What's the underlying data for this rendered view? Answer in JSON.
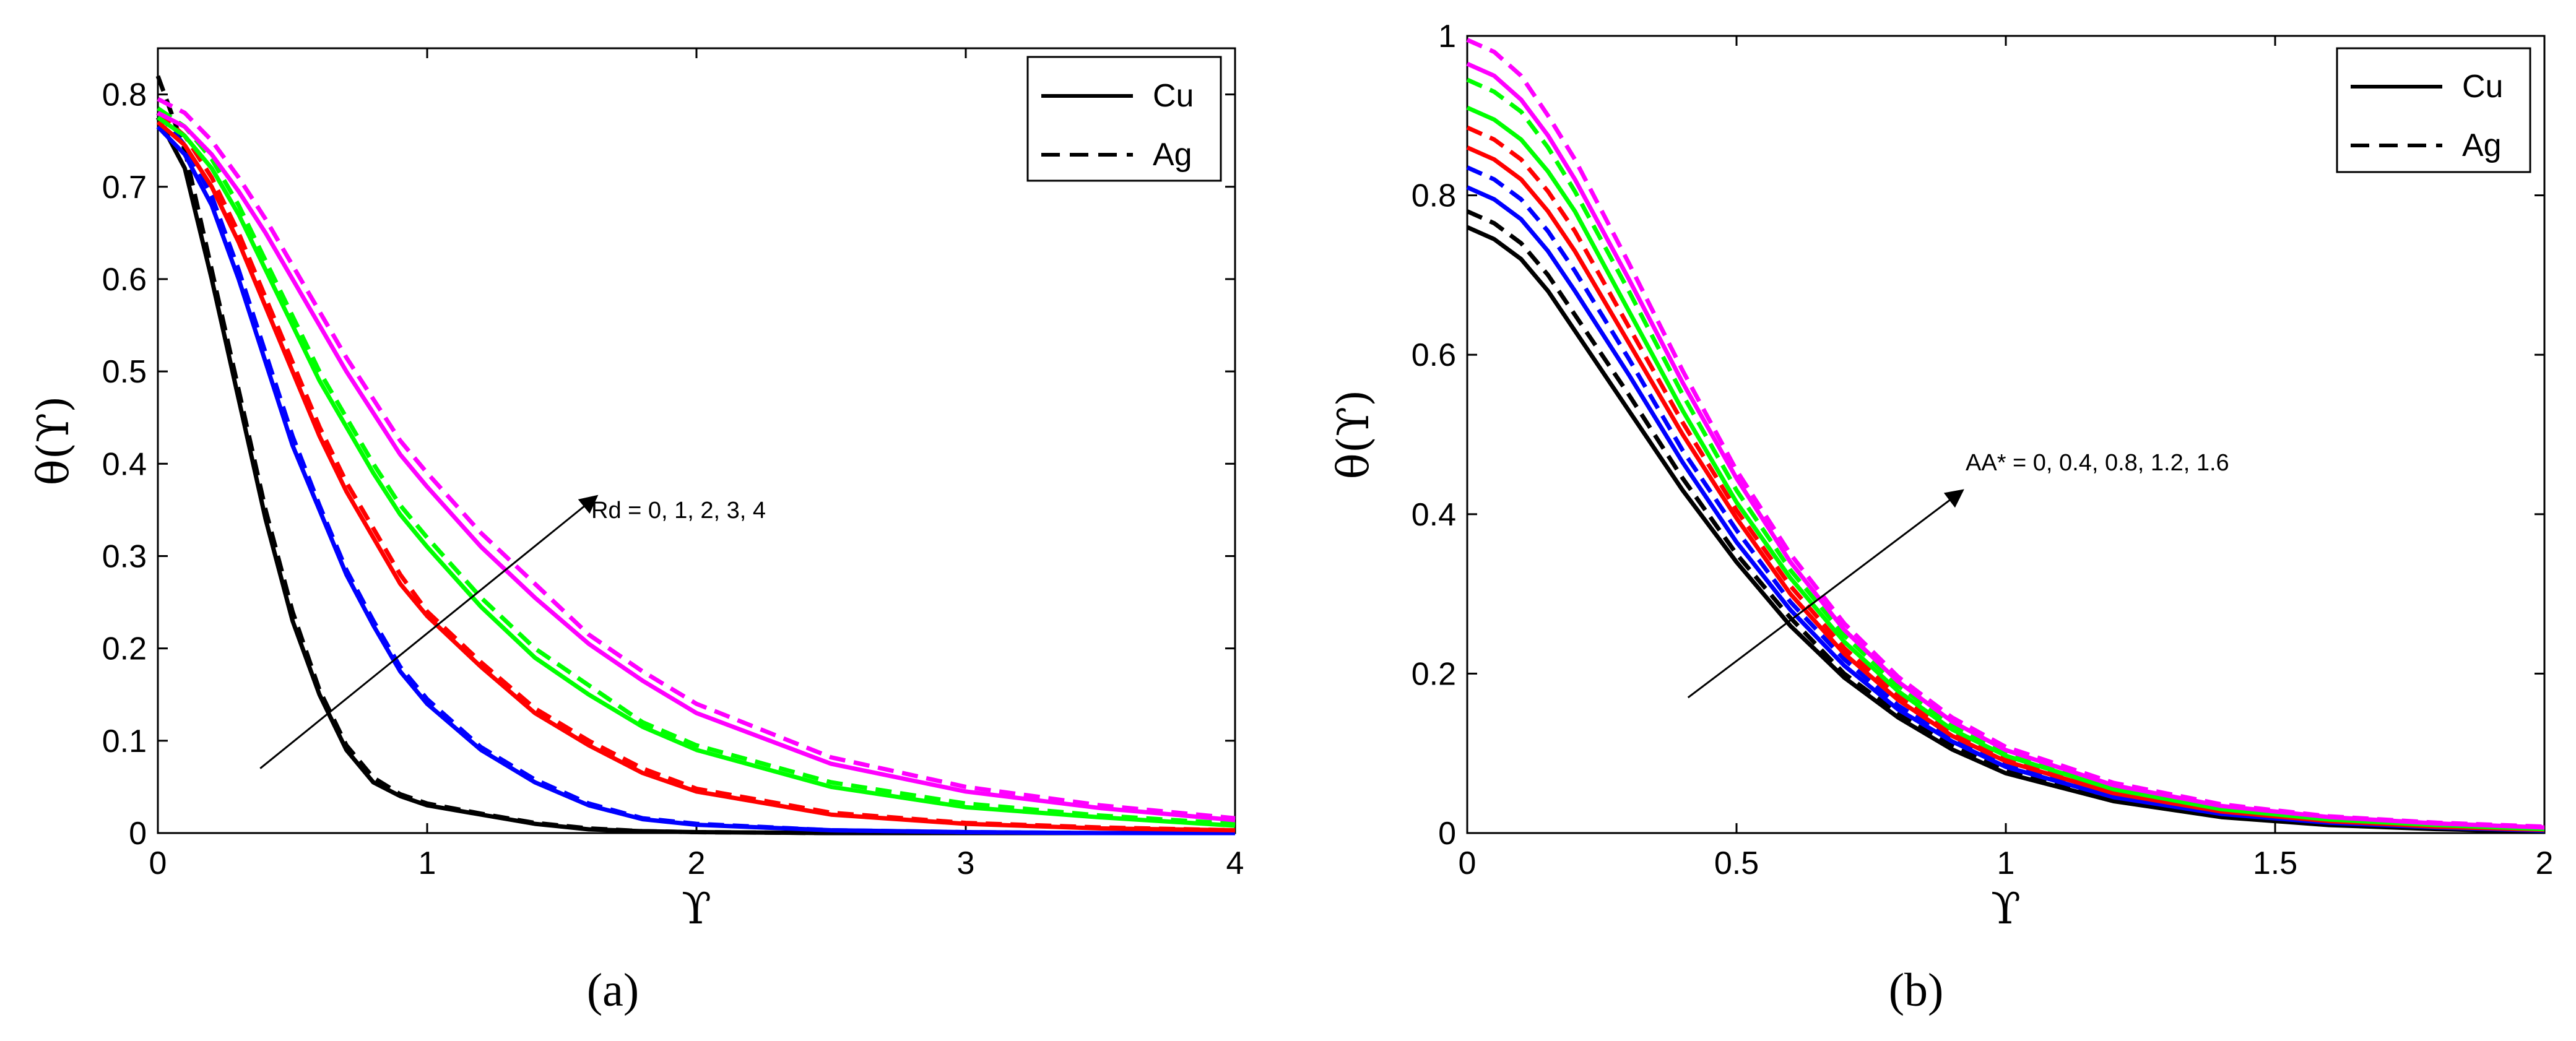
{
  "chart_data": [
    {
      "type": "line",
      "panel_label": "(a)",
      "xlabel": "ϒ",
      "ylabel": "θ(ϒ)",
      "xlim": [
        0,
        4
      ],
      "ylim": [
        0,
        0.85
      ],
      "xticks": [
        0,
        1,
        2,
        3,
        4
      ],
      "xtick_labels": [
        "0",
        "1",
        "2",
        "3",
        "4"
      ],
      "yticks": [
        0,
        0.1,
        0.2,
        0.3,
        0.4,
        0.5,
        0.6,
        0.7,
        0.8
      ],
      "ytick_labels": [
        "0",
        "0.1",
        "0.2",
        "0.3",
        "0.4",
        "0.5",
        "0.6",
        "0.7",
        "0.8"
      ],
      "legend": [
        {
          "label": "Cu",
          "style": "solid"
        },
        {
          "label": "Ag",
          "style": "dashed"
        }
      ],
      "annotation": {
        "text": "Rd = 0, 1, 2, 3, 4",
        "arrow_from": [
          0.38,
          0.07
        ],
        "arrow_to": [
          1.63,
          0.365
        ]
      },
      "x": [
        0,
        0.1,
        0.2,
        0.3,
        0.4,
        0.5,
        0.6,
        0.7,
        0.8,
        0.9,
        1.0,
        1.2,
        1.4,
        1.6,
        1.8,
        2.0,
        2.5,
        3.0,
        3.5,
        4.0
      ],
      "series": [
        {
          "name": "Cu, Rd = 0",
          "color": "#000000",
          "style": "solid",
          "values": [
            0.775,
            0.72,
            0.6,
            0.47,
            0.34,
            0.23,
            0.15,
            0.09,
            0.055,
            0.04,
            0.03,
            0.02,
            0.01,
            0.004,
            0.002,
            0.001,
            0.0,
            0.0,
            0.0,
            0.0
          ]
        },
        {
          "name": "Ag, Rd = 0",
          "color": "#000000",
          "style": "dashed",
          "values": [
            0.82,
            0.74,
            0.61,
            0.48,
            0.35,
            0.24,
            0.155,
            0.095,
            0.06,
            0.042,
            0.032,
            0.021,
            0.011,
            0.005,
            0.002,
            0.001,
            0.0,
            0.0,
            0.0,
            0.0
          ]
        },
        {
          "name": "Cu, Rd = 1",
          "color": "#0000ff",
          "style": "solid",
          "values": [
            0.765,
            0.735,
            0.68,
            0.6,
            0.51,
            0.42,
            0.35,
            0.28,
            0.225,
            0.175,
            0.14,
            0.09,
            0.055,
            0.03,
            0.015,
            0.009,
            0.003,
            0.001,
            0.0,
            0.0
          ]
        },
        {
          "name": "Ag, Rd = 1",
          "color": "#0000ff",
          "style": "dashed",
          "values": [
            0.78,
            0.745,
            0.69,
            0.61,
            0.52,
            0.43,
            0.355,
            0.285,
            0.23,
            0.18,
            0.145,
            0.093,
            0.058,
            0.032,
            0.016,
            0.01,
            0.003,
            0.001,
            0.0,
            0.0
          ]
        },
        {
          "name": "Cu, Rd = 2",
          "color": "#ff0000",
          "style": "solid",
          "values": [
            0.77,
            0.745,
            0.7,
            0.64,
            0.57,
            0.5,
            0.43,
            0.37,
            0.32,
            0.27,
            0.235,
            0.18,
            0.13,
            0.095,
            0.065,
            0.045,
            0.02,
            0.01,
            0.005,
            0.003
          ]
        },
        {
          "name": "Ag, Rd = 2",
          "color": "#ff0000",
          "style": "dashed",
          "values": [
            0.78,
            0.755,
            0.71,
            0.65,
            0.58,
            0.51,
            0.44,
            0.38,
            0.33,
            0.28,
            0.24,
            0.185,
            0.135,
            0.1,
            0.07,
            0.048,
            0.022,
            0.011,
            0.006,
            0.003
          ]
        },
        {
          "name": "Cu, Rd = 3",
          "color": "#00ff00",
          "style": "solid",
          "values": [
            0.775,
            0.755,
            0.72,
            0.67,
            0.61,
            0.55,
            0.49,
            0.44,
            0.39,
            0.345,
            0.31,
            0.245,
            0.19,
            0.15,
            0.115,
            0.09,
            0.05,
            0.028,
            0.017,
            0.008
          ]
        },
        {
          "name": "Ag, Rd = 3",
          "color": "#00ff00",
          "style": "dashed",
          "values": [
            0.785,
            0.765,
            0.73,
            0.68,
            0.62,
            0.56,
            0.5,
            0.45,
            0.4,
            0.355,
            0.32,
            0.255,
            0.2,
            0.16,
            0.12,
            0.095,
            0.055,
            0.032,
            0.019,
            0.01
          ]
        },
        {
          "name": "Cu, Rd = 4",
          "color": "#ff00ff",
          "style": "solid",
          "values": [
            0.78,
            0.765,
            0.735,
            0.695,
            0.65,
            0.6,
            0.55,
            0.5,
            0.455,
            0.41,
            0.375,
            0.31,
            0.255,
            0.205,
            0.165,
            0.13,
            0.075,
            0.045,
            0.027,
            0.014
          ]
        },
        {
          "name": "Ag, Rd = 4",
          "color": "#ff00ff",
          "style": "dashed",
          "values": [
            0.795,
            0.78,
            0.75,
            0.71,
            0.665,
            0.615,
            0.565,
            0.515,
            0.47,
            0.425,
            0.39,
            0.325,
            0.27,
            0.215,
            0.175,
            0.14,
            0.082,
            0.05,
            0.03,
            0.016
          ]
        }
      ]
    },
    {
      "type": "line",
      "panel_label": "(b)",
      "xlabel": "ϒ",
      "ylabel": "θ(ϒ)",
      "xlim": [
        0,
        2
      ],
      "ylim": [
        0,
        1
      ],
      "xticks": [
        0,
        0.5,
        1,
        1.5,
        2
      ],
      "xtick_labels": [
        "0",
        "0.5",
        "1",
        "1.5",
        "2"
      ],
      "yticks": [
        0,
        0.2,
        0.4,
        0.6,
        0.8,
        1
      ],
      "ytick_labels": [
        "0",
        "0.2",
        "0.4",
        "0.6",
        "0.8",
        "1"
      ],
      "legend": [
        {
          "label": "Cu",
          "style": "solid"
        },
        {
          "label": "Ag",
          "style": "dashed"
        }
      ],
      "annotation": {
        "text": "AA* = 0, 0.4, 0.8, 1.2, 1.6",
        "arrow_from": [
          0.41,
          0.17
        ],
        "arrow_to": [
          0.92,
          0.43
        ]
      },
      "x": [
        0,
        0.05,
        0.1,
        0.15,
        0.2,
        0.3,
        0.4,
        0.5,
        0.6,
        0.7,
        0.8,
        0.9,
        1.0,
        1.2,
        1.4,
        1.6,
        1.8,
        2.0
      ],
      "series": [
        {
          "name": "Cu, AA* = 0",
          "color": "#000000",
          "style": "solid",
          "values": [
            0.76,
            0.745,
            0.72,
            0.68,
            0.63,
            0.53,
            0.43,
            0.34,
            0.26,
            0.195,
            0.145,
            0.105,
            0.075,
            0.04,
            0.02,
            0.01,
            0.005,
            0.002
          ]
        },
        {
          "name": "Ag, AA* = 0",
          "color": "#000000",
          "style": "dashed",
          "values": [
            0.78,
            0.765,
            0.74,
            0.7,
            0.65,
            0.55,
            0.445,
            0.35,
            0.27,
            0.2,
            0.15,
            0.11,
            0.08,
            0.043,
            0.022,
            0.012,
            0.006,
            0.003
          ]
        },
        {
          "name": "Cu, AA* = 0.4",
          "color": "#0000ff",
          "style": "solid",
          "values": [
            0.81,
            0.795,
            0.77,
            0.73,
            0.68,
            0.575,
            0.465,
            0.365,
            0.28,
            0.21,
            0.155,
            0.115,
            0.083,
            0.045,
            0.024,
            0.013,
            0.007,
            0.003
          ]
        },
        {
          "name": "Ag, AA* = 0.4",
          "color": "#0000ff",
          "style": "dashed",
          "values": [
            0.835,
            0.82,
            0.795,
            0.755,
            0.705,
            0.595,
            0.48,
            0.38,
            0.29,
            0.218,
            0.16,
            0.118,
            0.087,
            0.047,
            0.025,
            0.014,
            0.008,
            0.004
          ]
        },
        {
          "name": "Cu, AA* = 0.8",
          "color": "#ff0000",
          "style": "solid",
          "values": [
            0.86,
            0.845,
            0.82,
            0.78,
            0.73,
            0.615,
            0.5,
            0.395,
            0.3,
            0.225,
            0.167,
            0.122,
            0.09,
            0.05,
            0.027,
            0.015,
            0.008,
            0.004
          ]
        },
        {
          "name": "Ag, AA* = 0.8",
          "color": "#ff0000",
          "style": "dashed",
          "values": [
            0.885,
            0.87,
            0.845,
            0.805,
            0.755,
            0.635,
            0.515,
            0.405,
            0.31,
            0.232,
            0.172,
            0.127,
            0.093,
            0.052,
            0.028,
            0.016,
            0.009,
            0.005
          ]
        },
        {
          "name": "Cu, AA* = 1.2",
          "color": "#00ff00",
          "style": "solid",
          "values": [
            0.91,
            0.895,
            0.87,
            0.83,
            0.78,
            0.655,
            0.53,
            0.415,
            0.32,
            0.24,
            0.178,
            0.13,
            0.097,
            0.055,
            0.03,
            0.017,
            0.01,
            0.005
          ]
        },
        {
          "name": "Ag, AA* = 1.2",
          "color": "#00ff00",
          "style": "dashed",
          "values": [
            0.945,
            0.93,
            0.905,
            0.86,
            0.805,
            0.68,
            0.55,
            0.43,
            0.33,
            0.248,
            0.185,
            0.136,
            0.1,
            0.057,
            0.032,
            0.018,
            0.011,
            0.006
          ]
        },
        {
          "name": "Cu, AA* = 1.6",
          "color": "#ff00ff",
          "style": "solid",
          "values": [
            0.965,
            0.95,
            0.92,
            0.875,
            0.82,
            0.695,
            0.565,
            0.445,
            0.34,
            0.255,
            0.19,
            0.14,
            0.104,
            0.06,
            0.034,
            0.02,
            0.012,
            0.007
          ]
        },
        {
          "name": "Ag, AA* = 1.6",
          "color": "#ff00ff",
          "style": "dashed",
          "values": [
            0.995,
            0.98,
            0.95,
            0.9,
            0.845,
            0.715,
            0.58,
            0.455,
            0.35,
            0.263,
            0.196,
            0.145,
            0.108,
            0.063,
            0.036,
            0.021,
            0.013,
            0.008
          ]
        }
      ]
    }
  ]
}
